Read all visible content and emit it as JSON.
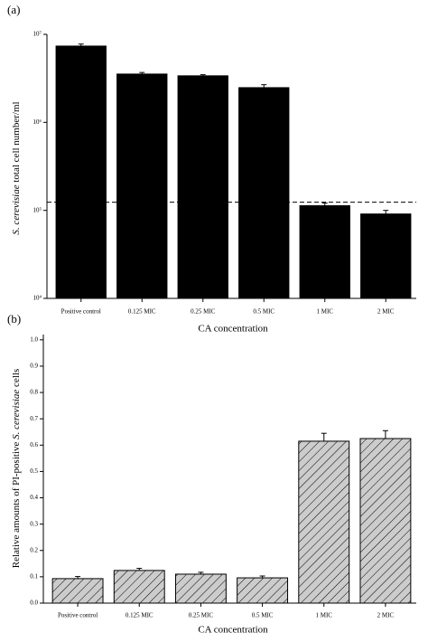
{
  "chart_data": [
    {
      "type": "bar",
      "panel": "(a)",
      "yscale": "log",
      "ylabel_italic": "S. cerevisiae",
      "ylabel": " total cell number/ml",
      "xlabel": "CA concentration",
      "categories": [
        "Positive control",
        "0.125 MIC",
        "0.25 MIC",
        "0.5 MIC",
        "1 MIC",
        "2 MIC"
      ],
      "values": [
        7360000,
        3540000,
        3380000,
        2480000,
        113000,
        91000
      ],
      "errors": [
        400000,
        150000,
        100000,
        200000,
        8000,
        9000
      ],
      "color": "#000000",
      "hatch": false,
      "reference_line": 124000,
      "ylim": [
        10000,
        10000000
      ],
      "yticks": [
        {
          "value": 10000,
          "label": "10⁴"
        },
        {
          "value": 100000,
          "label": "10⁵"
        },
        {
          "value": 1000000,
          "label": "10⁶"
        },
        {
          "value": 10000000,
          "label": "10⁷"
        }
      ]
    },
    {
      "type": "bar",
      "panel": "(b)",
      "yscale": "linear",
      "ylabel_parts": [
        "Relative amounts of PI-positive ",
        "S. cerevisiae",
        " cells"
      ],
      "xlabel": "CA concentration",
      "categories": [
        "Positive control",
        "0.125 MIC",
        "0.25 MIC",
        "0.5 MIC",
        "1 MIC",
        "2 MIC"
      ],
      "values": [
        0.093,
        0.124,
        0.11,
        0.096,
        0.615,
        0.625
      ],
      "errors": [
        0.008,
        0.008,
        0.007,
        0.007,
        0.03,
        0.03
      ],
      "color": "#cccccc",
      "hatch": true,
      "ylim": [
        0,
        1.02
      ],
      "yticks": [
        {
          "value": 0,
          "label": "0.0"
        },
        0.1,
        0.2,
        0.3,
        0.4,
        0.5,
        0.6,
        0.7,
        0.8,
        0.9,
        {
          "value": 1,
          "label": "1.0"
        }
      ]
    }
  ]
}
